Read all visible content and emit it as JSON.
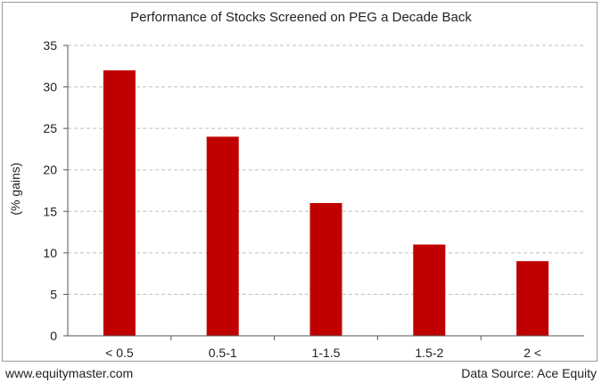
{
  "chart_data": {
    "type": "bar",
    "title": "Performance of Stocks Screened on PEG a Decade Back",
    "ylabel": "(% gains)",
    "xlabel": "",
    "categories": [
      "< 0.5",
      "0.5-1",
      "1-1.5",
      "1.5-2",
      "2 <"
    ],
    "values": [
      32,
      24,
      16,
      11,
      9
    ],
    "ylim": [
      0,
      35
    ],
    "yticks": [
      0,
      5,
      10,
      15,
      20,
      25,
      30,
      35
    ],
    "grid": true,
    "bar_color": "#c00000",
    "grid_color": "#bfbfbf"
  },
  "footer": {
    "left": "www.equitymaster.com",
    "right": "Data Source: Ace Equity"
  }
}
